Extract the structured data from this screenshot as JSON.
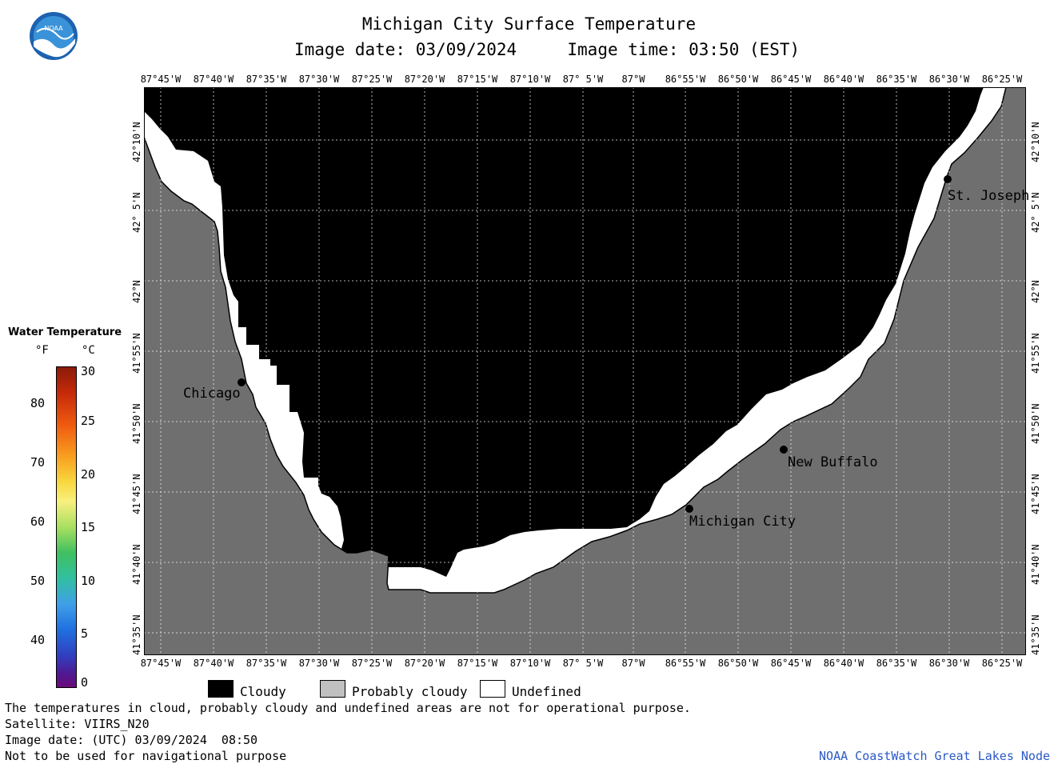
{
  "logo": {
    "text": "NOAA",
    "icon": "noaa-logo"
  },
  "title": "Michigan City Surface Temperature",
  "subtitle": {
    "date_label": "Image date:",
    "date": "03/09/2024",
    "time_label": "Image time:",
    "time": "03:50 (EST)"
  },
  "longitudes": [
    "87°45'W",
    "87°40'W",
    "87°35'W",
    "87°30'W",
    "87°25'W",
    "87°20'W",
    "87°15'W",
    "87°10'W",
    "87° 5'W",
    "87°W",
    "86°55'W",
    "86°50'W",
    "86°45'W",
    "86°40'W",
    "86°35'W",
    "86°30'W",
    "86°25'W"
  ],
  "latitudes": [
    "42°10'N",
    "42° 5'N",
    "42°N",
    "41°55'N",
    "41°50'N",
    "41°45'N",
    "41°40'N",
    "41°35'N"
  ],
  "cities": {
    "chicago": "Chicago",
    "michigan_city": "Michigan City",
    "new_buffalo": "New Buffalo",
    "st_joseph": "St. Joseph"
  },
  "scale": {
    "title": "Water Temperature",
    "unit_f": "°F",
    "unit_c": "°C",
    "f_ticks": [
      "80",
      "70",
      "60",
      "50",
      "40"
    ],
    "c_ticks": [
      "30",
      "25",
      "20",
      "15",
      "10",
      "5",
      "0"
    ]
  },
  "legend": {
    "cloudy": "Cloudy",
    "probably_cloudy": "Probably cloudy",
    "undefined": "Undefined"
  },
  "footer": {
    "line1": "The temperatures in cloud, probably cloudy and undefined areas are not for operational purpose.",
    "line2": "Satellite: VIIRS_N20",
    "line3": "Image date: (UTC) 03/09/2024  08:50",
    "line4": "Not to be used for navigational purpose",
    "credit": "NOAA CoastWatch Great Lakes Node"
  },
  "colors": {
    "land": "#6f6f6f",
    "cloud": "#000000",
    "undefined": "#ffffff",
    "probably_cloudy": "#c0c0c0",
    "credit": "#2b58c6"
  }
}
